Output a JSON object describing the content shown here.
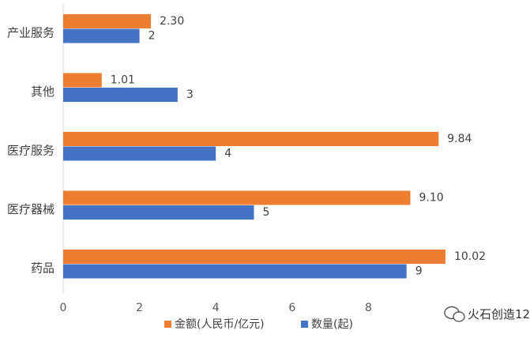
{
  "chart_data": {
    "type": "bar",
    "orientation": "horizontal",
    "categories": [
      "产业服务",
      "其他",
      "医疗服务",
      "医疗器械",
      "药品"
    ],
    "series": [
      {
        "name": "金额(人民币/亿元)",
        "values": [
          2.3,
          1.01,
          9.84,
          9.1,
          10.02
        ],
        "labels": [
          "2.30",
          "1.01",
          "9.84",
          "9.10",
          "10.02"
        ],
        "color": "#ED7D31"
      },
      {
        "name": "数量(起)",
        "values": [
          2,
          3,
          4,
          5,
          9
        ],
        "labels": [
          "2",
          "3",
          "4",
          "5",
          "9"
        ],
        "color": "#4472C4"
      }
    ],
    "x_ticks": [
      "0",
      "2",
      "4",
      "6",
      "8"
    ],
    "xlim": [
      0,
      12
    ],
    "grid": false,
    "legend": "bottom",
    "title": "",
    "xlabel": "",
    "ylabel": ""
  },
  "watermark": {
    "text": "火石创造12"
  }
}
